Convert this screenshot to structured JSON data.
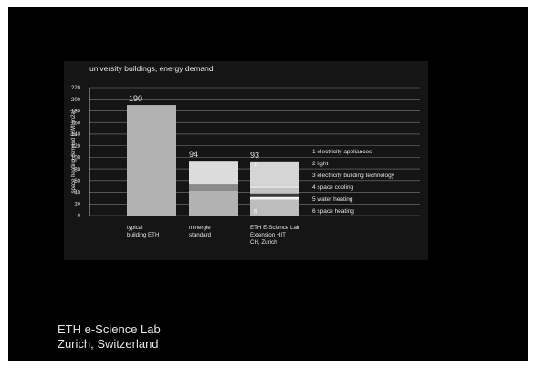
{
  "chart_data": {
    "type": "bar",
    "title": "university buildings, energy demand",
    "ylabel": "space heating demand [kWh/m2a]",
    "xlabel": "",
    "ylim": [
      0,
      220
    ],
    "yticks": [
      0,
      20,
      40,
      60,
      80,
      100,
      120,
      140,
      160,
      180,
      200,
      220
    ],
    "grid": true,
    "categories": [
      [
        "typical",
        "building ETH"
      ],
      [
        "minergie",
        "standard"
      ],
      [
        "ETH E-Science Lab",
        "Extension HIT",
        "CH, Zurich"
      ]
    ],
    "totals": [
      190,
      94,
      93
    ],
    "stacks": [
      [
        {
          "component": "space heating",
          "value": 190,
          "color": "#b2b2b2"
        }
      ],
      [
        {
          "component": "space heating",
          "value": 43,
          "color": "#b2b2b2"
        },
        {
          "component": "space cooling",
          "value": 10,
          "color": "#8a8a8a"
        },
        {
          "component": "electricity appliances",
          "value": 41,
          "color": "#dcdcdc"
        }
      ],
      [
        {
          "component": "space heating",
          "value": 27,
          "color": "#bdbdbd"
        },
        {
          "component": "water heating",
          "value": 5,
          "color": "#f2f2f2"
        },
        {
          "component": "space cooling",
          "value": 6,
          "color": "#3a3a3a"
        },
        {
          "component": "electricity building technology",
          "value": 8,
          "color": "#c4c4c4"
        },
        {
          "component": "light",
          "value": 5,
          "color": "#e0e0e0"
        },
        {
          "component": "electricity appliances",
          "value": 42,
          "color": "#d5d5d5"
        }
      ]
    ],
    "segment_numbers": [
      {
        "bar": 2,
        "text": "1",
        "at": 88
      },
      {
        "bar": 2,
        "text": "6",
        "at": 7
      }
    ],
    "legend": [
      "1 electricity appliances",
      "2 light",
      "3 electricity building technology",
      "4 space cooling",
      "5 water heating",
      "6 space heating"
    ],
    "legend_placement": "right"
  },
  "caption": {
    "line1": "ETH e-Science Lab",
    "line2": "Zurich, Switzerland"
  },
  "colors": {
    "background": "#000000",
    "panel": "#151515",
    "text": "#e6e6e6",
    "grid": "#d0d0d0"
  }
}
